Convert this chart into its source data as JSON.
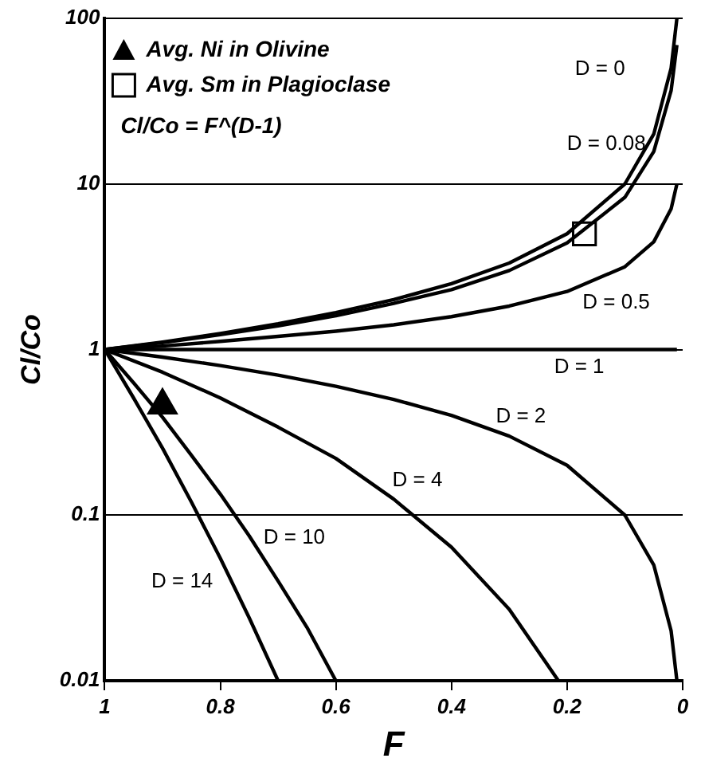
{
  "chart_data": {
    "type": "line",
    "xlabel": "F",
    "ylabel": "Cl/Co",
    "log": "y",
    "grid": "y",
    "legend": "top left",
    "marker": "none",
    "xlim": [
      1,
      0
    ],
    "xticks": [
      1,
      0.8,
      0.6,
      0.4,
      0.2,
      0
    ],
    "ylim": [
      0.01,
      100
    ],
    "yticks": [
      0.01,
      0.1,
      1,
      10,
      100
    ],
    "series": [
      {
        "name": "D = 0",
        "color": "#000000",
        "x": [
          1,
          0.9,
          0.8,
          0.7,
          0.6,
          0.5,
          0.4,
          0.3,
          0.2,
          0.1,
          0.05,
          0.02,
          0.01
        ],
        "values": [
          1,
          1.11,
          1.25,
          1.43,
          1.67,
          2,
          2.5,
          3.33,
          5,
          10,
          20,
          50,
          100
        ]
      },
      {
        "name": "D = 0.08",
        "color": "#000000",
        "x": [
          1,
          0.9,
          0.8,
          0.7,
          0.6,
          0.5,
          0.4,
          0.3,
          0.2,
          0.1,
          0.05,
          0.02,
          0.01
        ],
        "values": [
          1,
          1.1,
          1.23,
          1.39,
          1.6,
          1.9,
          2.3,
          3.0,
          4.4,
          8.3,
          15.7,
          36.6,
          69
        ]
      },
      {
        "name": "D = 0.5",
        "color": "#000000",
        "x": [
          1,
          0.9,
          0.8,
          0.7,
          0.6,
          0.5,
          0.4,
          0.3,
          0.2,
          0.1,
          0.05,
          0.02,
          0.01
        ],
        "values": [
          1,
          1.05,
          1.12,
          1.2,
          1.29,
          1.41,
          1.58,
          1.83,
          2.24,
          3.16,
          4.47,
          7.07,
          10
        ]
      },
      {
        "name": "D = 1",
        "color": "#000000",
        "x": [
          1,
          0.01
        ],
        "values": [
          1,
          1
        ]
      },
      {
        "name": "D = 2",
        "color": "#000000",
        "x": [
          1,
          0.9,
          0.8,
          0.7,
          0.6,
          0.5,
          0.4,
          0.3,
          0.2,
          0.1,
          0.05,
          0.02,
          0.01
        ],
        "values": [
          1,
          0.9,
          0.8,
          0.7,
          0.6,
          0.5,
          0.4,
          0.3,
          0.2,
          0.1,
          0.05,
          0.02,
          0.01
        ]
      },
      {
        "name": "D = 4",
        "color": "#000000",
        "x": [
          1,
          0.9,
          0.8,
          0.7,
          0.6,
          0.5,
          0.4,
          0.3,
          0.215
        ],
        "values": [
          1,
          0.73,
          0.51,
          0.34,
          0.22,
          0.125,
          0.064,
          0.027,
          0.01
        ]
      },
      {
        "name": "D = 10",
        "color": "#000000",
        "x": [
          1,
          0.95,
          0.9,
          0.85,
          0.8,
          0.75,
          0.7,
          0.65,
          0.6
        ],
        "values": [
          1,
          0.63,
          0.39,
          0.23,
          0.134,
          0.075,
          0.04,
          0.021,
          0.01
        ]
      },
      {
        "name": "D = 14",
        "color": "#000000",
        "x": [
          1,
          0.95,
          0.9,
          0.85,
          0.8,
          0.75,
          0.7
        ],
        "values": [
          1,
          0.51,
          0.254,
          0.12,
          0.055,
          0.024,
          0.01
        ]
      },
      {
        "type": "scatter",
        "name": "Avg. Ni in Olivine",
        "marker": "triangle",
        "color": "#000000",
        "x": [
          0.9
        ],
        "values": [
          0.46
        ]
      },
      {
        "type": "scatter",
        "name": "Avg. Sm in Plagioclase",
        "marker": "square",
        "color": "#000000",
        "x": [
          0.17
        ],
        "values": [
          5
        ]
      }
    ],
    "annotations": [
      "Cl/Co = F^(D-1)"
    ]
  }
}
